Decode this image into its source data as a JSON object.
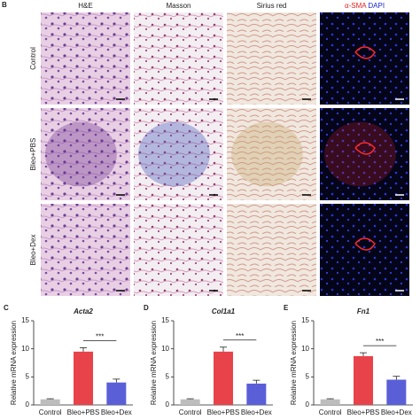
{
  "micrographs": {
    "panel": "B",
    "columns": [
      "H&E",
      "Masson",
      "Sirius red"
    ],
    "if_column": {
      "marker": "α-SMA",
      "nuclei": "DAPI"
    },
    "rows": [
      "Control",
      "Bleo+PBS",
      "Bleo+Dex"
    ]
  },
  "chart_data": [
    {
      "type": "bar",
      "panel": "C",
      "title": "Acta2",
      "ylabel": "Relative mRNA expression",
      "categories": [
        "Control",
        "Bleo+PBS",
        "Bleo+Dex"
      ],
      "values": [
        1,
        9.5,
        4
      ],
      "errors": [
        0.1,
        0.7,
        0.6
      ],
      "colors": [
        "#bdbdbd",
        "#e8434a",
        "#5a5fd8"
      ],
      "ylim": [
        0,
        15
      ],
      "yticks": [
        0,
        5,
        10,
        15
      ],
      "annotation": "***"
    },
    {
      "type": "bar",
      "panel": "D",
      "title": "Col1a1",
      "ylabel": "Relative mRNA expression",
      "categories": [
        "Control",
        "Bleo+PBS",
        "Bleo+Dex"
      ],
      "values": [
        1,
        9.5,
        3.8
      ],
      "errors": [
        0.1,
        0.8,
        0.6
      ],
      "colors": [
        "#bdbdbd",
        "#e8434a",
        "#5a5fd8"
      ],
      "ylim": [
        0,
        15
      ],
      "yticks": [
        0,
        5,
        10,
        15
      ],
      "annotation": "***"
    },
    {
      "type": "bar",
      "panel": "E",
      "title": "Fn1",
      "ylabel": "Relative mRNA expression",
      "categories": [
        "Control",
        "Bleo+PBS",
        "Bleo+Dex"
      ],
      "values": [
        1,
        8.7,
        4.5
      ],
      "errors": [
        0.1,
        0.6,
        0.6
      ],
      "colors": [
        "#bdbdbd",
        "#e8434a",
        "#5a5fd8"
      ],
      "ylim": [
        0,
        15
      ],
      "yticks": [
        0,
        5,
        10,
        15
      ],
      "annotation": "***"
    }
  ]
}
